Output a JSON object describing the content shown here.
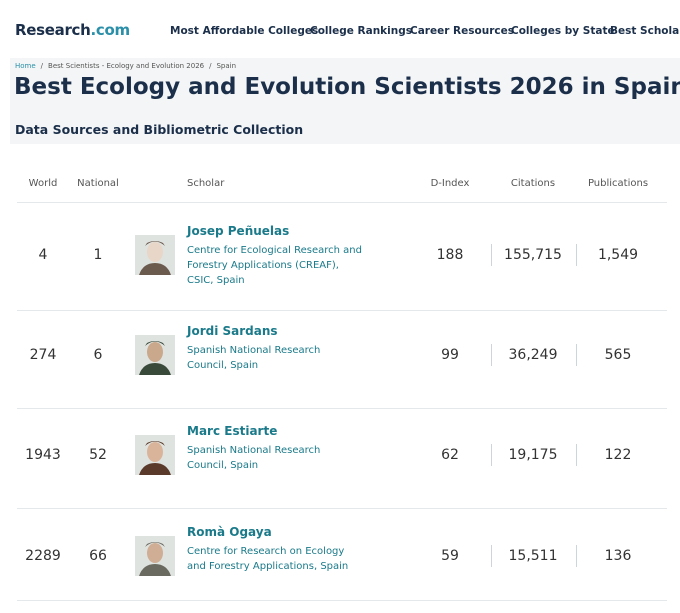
{
  "header": {
    "logo": {
      "name": "Research",
      "suffix": ".com"
    },
    "nav": [
      "Most Affordable Colleges",
      "College Rankings",
      "Career Resources",
      "Colleges by State",
      "Best Scholars"
    ]
  },
  "breadcrumb": {
    "items": [
      "Home",
      "Best Scientists - Ecology and Evolution 2026",
      "Spain"
    ],
    "separator": "/"
  },
  "title": "Best Ecology and Evolution Scientists 2026 in Spain",
  "subtitle": "Data Sources and Bibliometric Collection",
  "table": {
    "columns": [
      "World",
      "National",
      "Scholar",
      "D-Index",
      "Citations",
      "Publications"
    ],
    "rows": [
      {
        "world": "4",
        "national": "1",
        "name": "Josep Peñuelas",
        "affiliation": "Centre for Ecological Research and Forestry Applications (CREAF), CSIC, Spain",
        "dindex": "188",
        "citations": "155,715",
        "publications": "1,549"
      },
      {
        "world": "274",
        "national": "6",
        "name": "Jordi Sardans",
        "affiliation": "Spanish National Research Council, Spain",
        "dindex": "99",
        "citations": "36,249",
        "publications": "565"
      },
      {
        "world": "1943",
        "national": "52",
        "name": "Marc Estiarte",
        "affiliation": "Spanish National Research Council, Spain",
        "dindex": "62",
        "citations": "19,175",
        "publications": "122"
      },
      {
        "world": "2289",
        "national": "66",
        "name": "Romà Ogaya",
        "affiliation": "Centre for Research on Ecology and Forestry Applications, Spain",
        "dindex": "59",
        "citations": "15,511",
        "publications": "136"
      }
    ]
  }
}
